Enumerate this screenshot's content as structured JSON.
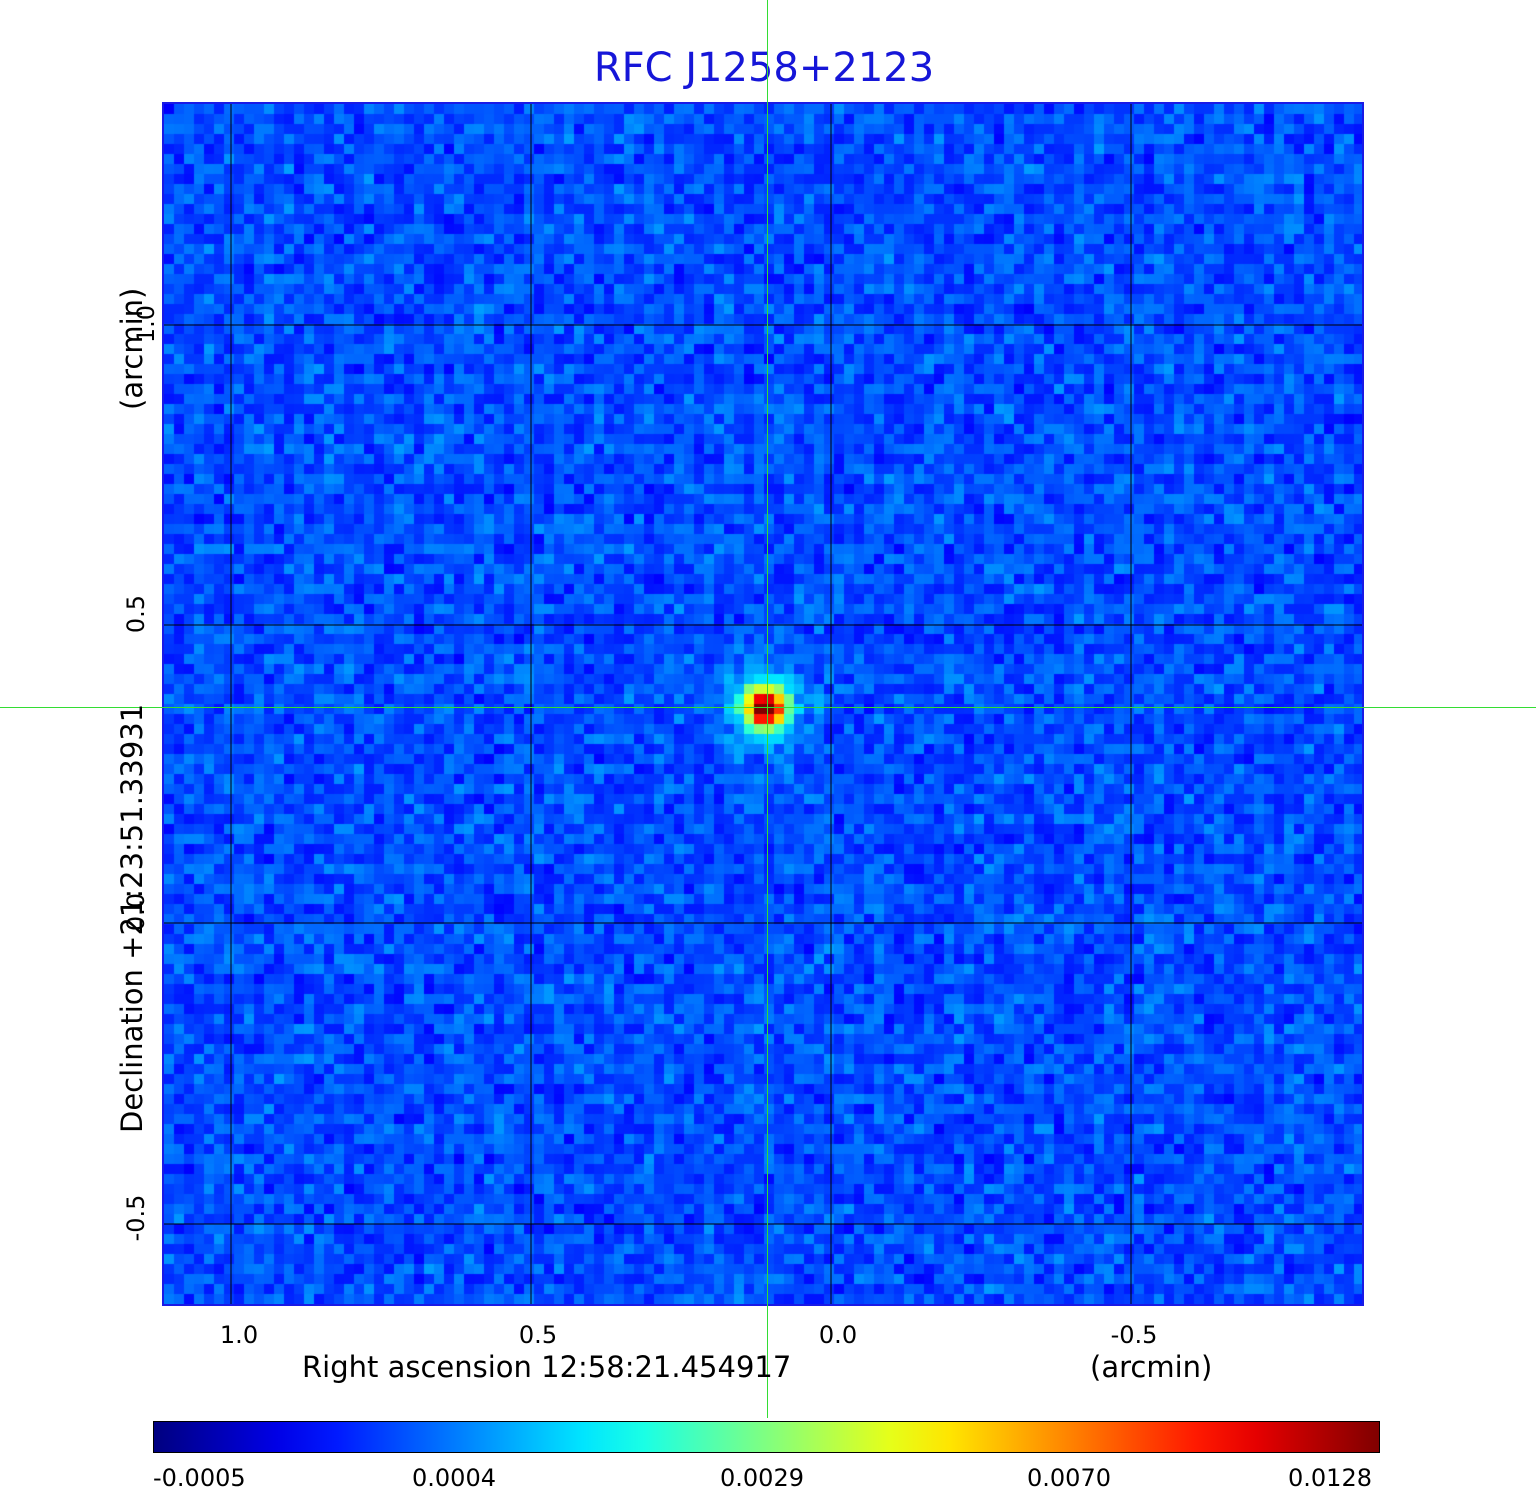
{
  "title": "RFC J1258+2123",
  "x_axis": {
    "label": "Right ascension  12:58:21.454917",
    "unit": "(arcmin)",
    "ticks": [
      "1.0",
      "0.5",
      "0.0",
      "-0.5"
    ],
    "tick_values": [
      1.0,
      0.5,
      0.0,
      -0.5
    ]
  },
  "y_axis": {
    "label": "Declination  +21:23:51.33931",
    "unit": "(arcmin)",
    "ticks": [
      "1.0",
      "0.5",
      "0.0",
      "-0.5"
    ],
    "tick_values": [
      1.0,
      0.5,
      0.0,
      -0.5
    ]
  },
  "colorbar": {
    "labels": [
      "-0.0005",
      "0.0004",
      "0.0029",
      "0.0070",
      "0.0128"
    ],
    "colormap": "jet"
  },
  "colors": {
    "title": "#1616d8",
    "frame": "#1a1ae6",
    "grid": "#000000",
    "crosshair": "#33dd33",
    "background_field": "#1f5cf0"
  },
  "source": {
    "ra_offset_arcmin": 0.11,
    "dec_offset_arcmin": 0.36
  }
}
